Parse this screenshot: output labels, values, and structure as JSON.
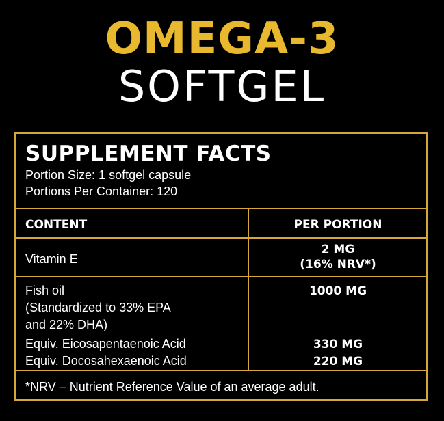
{
  "title": {
    "main": "OMEGA-3",
    "sub": "SOFTGEL"
  },
  "facts": {
    "heading": "SUPPLEMENT FACTS",
    "portion_size": "Portion Size: 1 softgel capsule",
    "portions_per_container": "Portions Per Container: 120",
    "columns": {
      "content": "CONTENT",
      "per_portion": "PER PORTION"
    },
    "rows": [
      {
        "name": "Vitamin E",
        "amount_line1": "2 MG",
        "amount_line2": "(16% NRV*)"
      },
      {
        "name_line1": "Fish oil",
        "name_line2": "(Standardized to 33% EPA",
        "name_line3": "and 22% DHA)",
        "amount": "1000 MG",
        "sub": [
          {
            "name": "Equiv. Eicosapentaenoic Acid",
            "amount": "330 MG"
          },
          {
            "name": "Equiv. Docosahexaenoic Acid",
            "amount": "220 MG"
          }
        ]
      }
    ],
    "footnote": "*NRV – Nutrient Reference Value of an average adult."
  },
  "colors": {
    "gold": "#e8b92f",
    "border": "#d4a838",
    "background": "#000000",
    "text": "#ffffff"
  }
}
